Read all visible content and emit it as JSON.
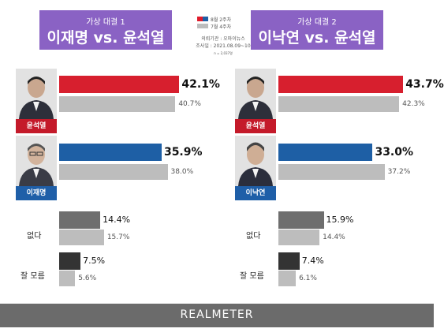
{
  "legend": {
    "current_label": "8월 2주차",
    "previous_label": "7월 4주차",
    "source_line": "의뢰기관 : 오마이뉴스",
    "date_line": "조사일 : 2021.08.09~10",
    "n_line": "n = 2,037명",
    "current_color": "#e01b2b",
    "previous_color": "#bdbdbd"
  },
  "panels": [
    {
      "subtitle": "가상 대결 1",
      "title": "이재명 vs. 윤석열",
      "candidates": [
        {
          "name": "윤석열",
          "name_bg": "#c41a2a",
          "current_color": "#d71f2e"
        },
        {
          "name": "이재명",
          "name_bg": "#1f5fa8",
          "current_color": "#1e5fa5"
        }
      ]
    },
    {
      "subtitle": "가상 대결 2",
      "title": "이낙연 vs. 윤석열",
      "candidates": [
        {
          "name": "윤석열",
          "name_bg": "#c41a2a",
          "current_color": "#d71f2e"
        },
        {
          "name": "이낙연",
          "name_bg": "#1f5fa8",
          "current_color": "#1e5fa5"
        }
      ]
    }
  ],
  "chart_data": [
    {
      "type": "bar",
      "title": "이재명 vs. 윤석열",
      "categories": [
        "윤석열",
        "이재명",
        "없다",
        "잘 모름"
      ],
      "series": [
        {
          "name": "8월 2주차",
          "values": [
            42.1,
            35.9,
            14.4,
            7.5
          ],
          "labels": [
            "42.1%",
            "35.9%",
            "14.4%",
            "7.5%"
          ]
        },
        {
          "name": "7월 4주차",
          "values": [
            40.7,
            38.0,
            15.7,
            5.6
          ],
          "labels": [
            "40.7%",
            "38.0%",
            "15.7%",
            "5.6%"
          ]
        }
      ]
    },
    {
      "type": "bar",
      "title": "이낙연 vs. 윤석열",
      "categories": [
        "윤석열",
        "이낙연",
        "없다",
        "잘 모름"
      ],
      "series": [
        {
          "name": "8월 2주차",
          "values": [
            43.7,
            33.0,
            15.9,
            7.4
          ],
          "labels": [
            "43.7%",
            "33.0%",
            "15.9%",
            "7.4%"
          ]
        },
        {
          "name": "7월 4주차",
          "values": [
            42.3,
            37.2,
            14.4,
            6.1
          ],
          "labels": [
            "42.3%",
            "37.2%",
            "14.4%",
            "6.1%"
          ]
        }
      ]
    }
  ],
  "other_categories": {
    "none": "없다",
    "dont_know": "잘 모름",
    "none_current_color": "#6e6e6e",
    "dont_know_current_color": "#333333"
  },
  "footer": {
    "brand": "REALMETER"
  }
}
